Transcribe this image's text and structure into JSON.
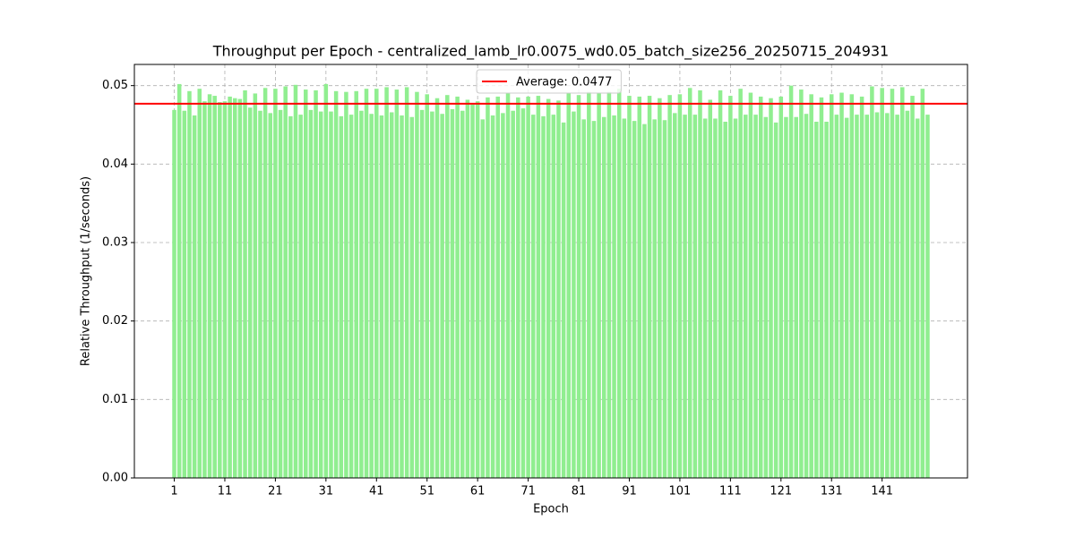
{
  "chart_data": {
    "type": "bar",
    "title": "Throughput per Epoch - centralized_lamb_lr0.0075_wd0.05_batch_size256_20250715_204931",
    "xlabel": "Epoch",
    "ylabel": "Relative Throughput (1/seconds)",
    "x": [
      1,
      2,
      3,
      4,
      5,
      6,
      7,
      8,
      9,
      10,
      11,
      12,
      13,
      14,
      15,
      16,
      17,
      18,
      19,
      20,
      21,
      22,
      23,
      24,
      25,
      26,
      27,
      28,
      29,
      30,
      31,
      32,
      33,
      34,
      35,
      36,
      37,
      38,
      39,
      40,
      41,
      42,
      43,
      44,
      45,
      46,
      47,
      48,
      49,
      50,
      51,
      52,
      53,
      54,
      55,
      56,
      57,
      58,
      59,
      60,
      61,
      62,
      63,
      64,
      65,
      66,
      67,
      68,
      69,
      70,
      71,
      72,
      73,
      74,
      75,
      76,
      77,
      78,
      79,
      80,
      81,
      82,
      83,
      84,
      85,
      86,
      87,
      88,
      89,
      90,
      91,
      92,
      93,
      94,
      95,
      96,
      97,
      98,
      99,
      100,
      101,
      102,
      103,
      104,
      105,
      106,
      107,
      108,
      109,
      110,
      111,
      112,
      113,
      114,
      115,
      116,
      117,
      118,
      119,
      120,
      121,
      122,
      123,
      124,
      125,
      126,
      127,
      128,
      129,
      130,
      131,
      132,
      133,
      134,
      135,
      136,
      137,
      138,
      139,
      140,
      141,
      142,
      143,
      144,
      145,
      146,
      147,
      148,
      149,
      150
    ],
    "values": [
      0.0469,
      0.0502,
      0.0468,
      0.0493,
      0.0462,
      0.0496,
      0.048,
      0.0489,
      0.0487,
      0.0479,
      0.048,
      0.0486,
      0.0484,
      0.0483,
      0.0494,
      0.0472,
      0.049,
      0.0468,
      0.0497,
      0.0465,
      0.0496,
      0.0469,
      0.0499,
      0.0461,
      0.0501,
      0.0463,
      0.0495,
      0.0469,
      0.0494,
      0.0467,
      0.0502,
      0.0467,
      0.0493,
      0.0461,
      0.0492,
      0.0463,
      0.0493,
      0.0468,
      0.0496,
      0.0464,
      0.0496,
      0.0462,
      0.0498,
      0.0466,
      0.0495,
      0.0462,
      0.0498,
      0.046,
      0.0492,
      0.0469,
      0.0489,
      0.0467,
      0.0484,
      0.0464,
      0.0488,
      0.047,
      0.0486,
      0.0468,
      0.0482,
      0.0476,
      0.048,
      0.0457,
      0.0485,
      0.0462,
      0.0486,
      0.0465,
      0.049,
      0.0468,
      0.0485,
      0.0471,
      0.0486,
      0.0463,
      0.0487,
      0.0461,
      0.0483,
      0.0463,
      0.0481,
      0.0453,
      0.049,
      0.0467,
      0.0488,
      0.0457,
      0.0492,
      0.0455,
      0.049,
      0.046,
      0.0492,
      0.0462,
      0.0496,
      0.0458,
      0.0487,
      0.0455,
      0.0486,
      0.0451,
      0.0487,
      0.0457,
      0.0484,
      0.0456,
      0.0488,
      0.0465,
      0.0489,
      0.0463,
      0.0497,
      0.0463,
      0.0494,
      0.0458,
      0.0482,
      0.0458,
      0.0494,
      0.0454,
      0.0487,
      0.0458,
      0.0496,
      0.0463,
      0.0491,
      0.0463,
      0.0486,
      0.046,
      0.0484,
      0.0453,
      0.0486,
      0.046,
      0.05,
      0.046,
      0.0495,
      0.0464,
      0.0489,
      0.0454,
      0.0485,
      0.0454,
      0.0489,
      0.0463,
      0.0491,
      0.0459,
      0.0489,
      0.0463,
      0.0486,
      0.0463,
      0.0499,
      0.0466,
      0.0497,
      0.0465,
      0.0496,
      0.0463,
      0.0498,
      0.0468,
      0.0487,
      0.0458,
      0.0496,
      0.0463
    ],
    "color": "#90ee90",
    "average": {
      "value": 0.0477,
      "label": "Average: 0.0477",
      "color": "#ff0000"
    },
    "legend": "upper center",
    "xlim": [
      -6.89,
      157.89
    ],
    "xticks": [
      1,
      11,
      21,
      31,
      41,
      51,
      61,
      71,
      81,
      91,
      101,
      111,
      121,
      131,
      141
    ],
    "ylim": [
      0,
      0.0527
    ],
    "yticks": [
      {
        "value": 0,
        "label": "0.00"
      },
      0.01,
      0.02,
      0.03,
      0.04,
      0.05
    ],
    "grid": true,
    "bar_width": 0.8
  }
}
